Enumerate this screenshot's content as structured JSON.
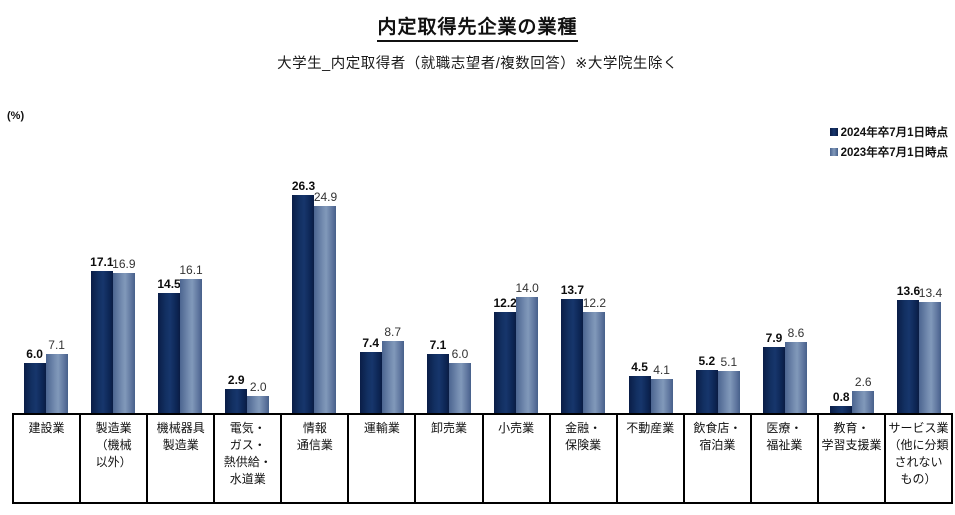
{
  "header": {
    "title": "内定取得先企業の業種",
    "subtitle": "大学生_内定取得者（就職志望者/複数回答）※大学院生除く"
  },
  "axis": {
    "unit_label": "(%)"
  },
  "legend": {
    "items": [
      {
        "label": "2024年卒7月1日時点",
        "color": "#122c5e"
      },
      {
        "label": "2023年卒7月1日時点",
        "color": "#52719e"
      }
    ]
  },
  "chart_data": {
    "type": "bar",
    "title": "内定取得先企業の業種",
    "subtitle": "大学生_内定取得者（就職志望者/複数回答）※大学院生除く",
    "ylabel": "(%)",
    "ylim": [
      0,
      27
    ],
    "grid": false,
    "legend_position": "top-right",
    "value_labels": true,
    "categories": [
      "建設業",
      "製造業\n（機械\n以外）",
      "機械器具\n製造業",
      "電気・\nガス・\n熱供給・\n水道業",
      "情報\n通信業",
      "運輸業",
      "卸売業",
      "小売業",
      "金融・\n保険業",
      "不動産業",
      "飲食店・\n宿泊業",
      "医療・\n福祉業",
      "教育・\n学習支援業",
      "サービス業\n（他に分類\nされない\nもの）"
    ],
    "series": [
      {
        "name": "2024年卒7月1日時点",
        "color": "#122c5e",
        "values": [
          6.0,
          17.1,
          14.5,
          2.9,
          26.3,
          7.4,
          7.1,
          12.2,
          13.7,
          4.5,
          5.2,
          7.9,
          0.8,
          13.6
        ]
      },
      {
        "name": "2023年卒7月1日時点",
        "color": "#52719e",
        "values": [
          7.1,
          16.9,
          16.1,
          2.0,
          24.9,
          8.7,
          6.0,
          14.0,
          12.2,
          4.1,
          5.1,
          8.6,
          2.6,
          13.4
        ]
      }
    ]
  }
}
